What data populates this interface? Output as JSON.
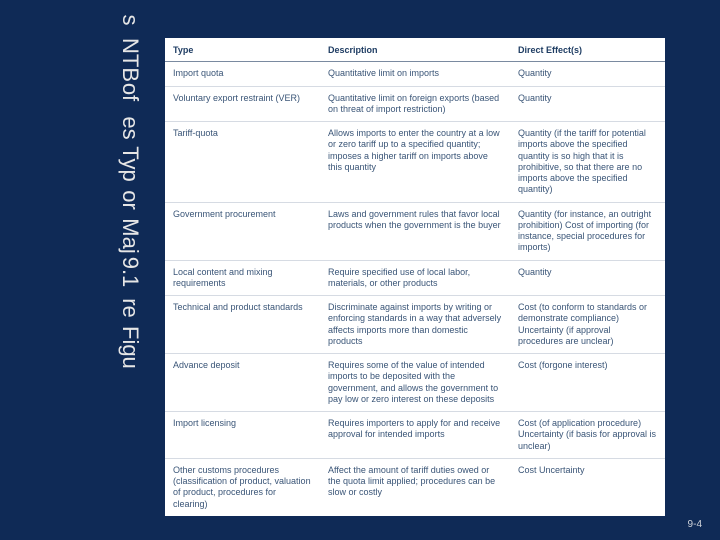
{
  "title_words": [
    "Figu",
    "re",
    "9.1",
    " ",
    "Maj",
    "or",
    "Typ",
    "es",
    "of",
    "NTB",
    "s"
  ],
  "page_number": "9-4",
  "table": {
    "headers": [
      "Type",
      "Description",
      "Direct Effect(s)"
    ],
    "rows": [
      [
        "Import quota",
        "Quantitative limit on imports",
        "Quantity"
      ],
      [
        "Voluntary export restraint (VER)",
        "Quantitative limit on foreign exports (based on threat of import restriction)",
        "Quantity"
      ],
      [
        "Tariff-quota",
        "Allows imports to enter the country at a low or zero tariff up to a specified quantity; imposes a higher tariff on imports above this quantity",
        "Quantity (if the tariff for potential imports above the specified quantity is so high that it is prohibitive, so that there are no imports above the specified quantity)"
      ],
      [
        "Government procurement",
        "Laws and government rules that favor local products when the government is the buyer",
        "Quantity (for instance, an outright prohibition)\nCost of importing (for instance, special procedures for imports)"
      ],
      [
        "Local content and mixing requirements",
        "Require specified use of local labor, materials, or other products",
        "Quantity"
      ],
      [
        "Technical and product standards",
        "Discriminate against imports by writing or enforcing standards in a way that adversely affects imports more than domestic products",
        "Cost (to conform to standards or demonstrate compliance)\nUncertainty (if approval procedures are unclear)"
      ],
      [
        "Advance deposit",
        "Requires some of the value of intended imports to be deposited with the government, and allows the government to pay low or zero interest on these deposits",
        "Cost (forgone interest)"
      ],
      [
        "Import licensing",
        "Requires importers to apply for and receive approval for intended imports",
        "Cost (of application procedure)\nUncertainty (if basis for approval is unclear)"
      ],
      [
        "Other customs procedures (classification of product, valuation of product, procedures for clearing)",
        "Affect the amount of tariff duties owed or the quota limit applied; procedures can be slow or costly",
        "Cost\nUncertainty"
      ]
    ]
  }
}
